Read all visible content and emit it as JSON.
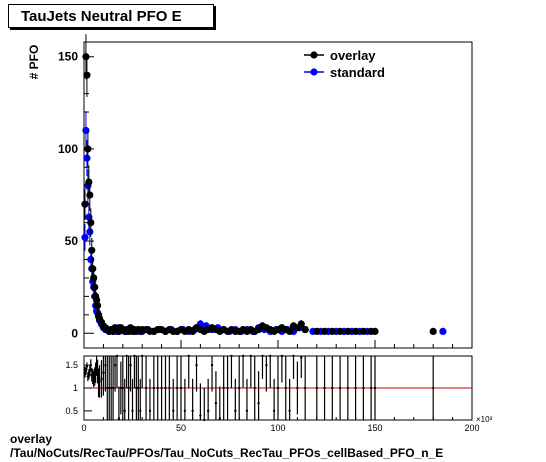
{
  "title": "TauJets Neutral PFO E",
  "footer": {
    "line1": "overlay",
    "line2": "/Tau/NoCuts/RecTau/PFOs/Tau_NoCuts_RecTau_PFOs_cellBased_PFO_n_E"
  },
  "chart_data": {
    "type": "scatter",
    "ylabel": "# PFO",
    "xlabel": "",
    "x_multiplier": "×10³",
    "xlim": [
      0,
      200
    ],
    "ylim": [
      -8,
      158
    ],
    "yticks": [
      0,
      50,
      100,
      150
    ],
    "xticks": [
      0,
      50,
      100,
      150,
      200
    ],
    "legend": "top-right",
    "series": [
      {
        "name": "overlay",
        "color": "#000000",
        "x": [
          0.5,
          1.0,
          1.5,
          2.0,
          2.5,
          3.0,
          3.5,
          4.0,
          4.5,
          5.0,
          5.5,
          6.0,
          6.5,
          7.0,
          7.5,
          8.0,
          9,
          10,
          11,
          12,
          13,
          14,
          15,
          16,
          17,
          18,
          19,
          20,
          21,
          22,
          23,
          24,
          25,
          26,
          27,
          28,
          29,
          30,
          32,
          34,
          36,
          38,
          40,
          42,
          44,
          46,
          48,
          50,
          52,
          54,
          56,
          58,
          60,
          62,
          64,
          66,
          68,
          70,
          72,
          74,
          76,
          78,
          80,
          82,
          84,
          86,
          88,
          90,
          92,
          94,
          96,
          98,
          100,
          102,
          104,
          106,
          108,
          110,
          112,
          114,
          120,
          124,
          128,
          132,
          136,
          140,
          144,
          148,
          150,
          180
        ],
        "y": [
          70,
          150,
          140,
          100,
          82,
          75,
          60,
          45,
          35,
          30,
          25,
          20,
          18,
          15,
          10,
          8,
          6,
          4,
          3,
          2,
          1,
          2,
          1,
          3,
          2,
          1,
          3,
          2,
          1,
          2,
          1,
          3,
          1,
          2,
          1,
          2,
          1,
          2,
          2,
          1,
          1,
          2,
          2,
          1,
          2,
          1,
          1,
          2,
          1,
          2,
          1,
          3,
          2,
          1,
          2,
          3,
          2,
          1,
          2,
          1,
          2,
          1,
          1,
          2,
          1,
          2,
          1,
          2,
          4,
          3,
          2,
          1,
          2,
          3,
          2,
          1,
          4,
          3,
          5,
          2,
          1,
          1,
          1,
          1,
          1,
          1,
          1,
          1,
          1,
          1
        ]
      },
      {
        "name": "standard",
        "color": "#0000ff",
        "x": [
          0.5,
          1.0,
          1.5,
          2.0,
          2.5,
          3.0,
          3.5,
          4.0,
          4.5,
          5.0,
          5.5,
          6.0,
          6.5,
          7.0,
          7.5,
          8.0,
          9,
          10,
          11,
          12,
          13,
          14,
          15,
          16,
          17,
          18,
          20,
          22,
          24,
          26,
          28,
          30,
          33,
          36,
          39,
          42,
          45,
          48,
          51,
          54,
          57,
          60,
          63,
          66,
          69,
          72,
          75,
          78,
          81,
          84,
          87,
          90,
          93,
          96,
          99,
          102,
          105,
          108,
          111,
          114,
          118,
          122,
          126,
          130,
          134,
          138,
          142,
          146,
          185
        ],
        "y": [
          52,
          110,
          95,
          80,
          63,
          55,
          40,
          35,
          28,
          25,
          20,
          15,
          12,
          11,
          9,
          7,
          5,
          3,
          2,
          2,
          1,
          2,
          1,
          2,
          1,
          3,
          2,
          1,
          2,
          1,
          2,
          1,
          2,
          1,
          2,
          1,
          2,
          1,
          2,
          1,
          2,
          5,
          4,
          2,
          3,
          2,
          1,
          2,
          1,
          2,
          1,
          3,
          2,
          1,
          2,
          1,
          2,
          1,
          3,
          2,
          1,
          1,
          1,
          1,
          1,
          1,
          1,
          1,
          1
        ]
      }
    ],
    "ratio": {
      "ylim": [
        0.3,
        1.7
      ],
      "yticks": [
        0.5,
        1,
        1.5
      ],
      "reference": 1
    }
  }
}
